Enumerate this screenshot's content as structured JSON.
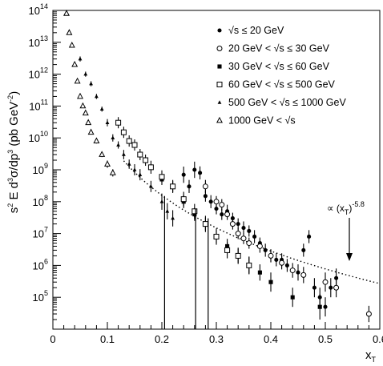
{
  "chart_data": {
    "type": "scatter",
    "title": "",
    "xlabel": "x",
    "xlabel_sub": "T",
    "ylabel_parts": [
      "s",
      "2",
      " E d",
      "3",
      "σ/dp",
      "3",
      " (pb GeV",
      "-2",
      ")"
    ],
    "xlim": [
      0,
      0.6
    ],
    "ylim": [
      10000,
      100000000000000
    ],
    "yscale": "log",
    "grid": false,
    "legend_position": "top-right",
    "x_ticks": [
      "0",
      "0.1",
      "0.2",
      "0.3",
      "0.4",
      "0.5",
      "0.6"
    ],
    "y_ticks": [
      {
        "base": "10",
        "exp": "5"
      },
      {
        "base": "10",
        "exp": "6"
      },
      {
        "base": "10",
        "exp": "7"
      },
      {
        "base": "10",
        "exp": "8"
      },
      {
        "base": "10",
        "exp": "9"
      },
      {
        "base": "10",
        "exp": "10"
      },
      {
        "base": "10",
        "exp": "11"
      },
      {
        "base": "10",
        "exp": "12"
      },
      {
        "base": "10",
        "exp": "13"
      },
      {
        "base": "10",
        "exp": "14"
      }
    ],
    "fit": {
      "label_main": "∝ (x",
      "label_sub": "T",
      "label_close": ")",
      "label_exp": "-5.8",
      "exponent": -5.8,
      "x_range": [
        0.13,
        0.6
      ],
      "ref_x": 0.3,
      "ref_y": 15000000
    },
    "series": [
      {
        "name": "√s ≤ 20 GeV",
        "marker": "filled-circle",
        "points": [
          [
            0.24,
            700000000,
            1.8
          ],
          [
            0.25,
            300000000,
            1.6
          ],
          [
            0.26,
            1000000000,
            1.8
          ],
          [
            0.27,
            800000000,
            1.6
          ],
          [
            0.28,
            150000000,
            1.5
          ],
          [
            0.29,
            100000000,
            1.6
          ],
          [
            0.3,
            60000000,
            1.5
          ],
          [
            0.31,
            40000000,
            1.5
          ],
          [
            0.32,
            50000000,
            1.6
          ],
          [
            0.33,
            30000000,
            1.5
          ],
          [
            0.34,
            20000000,
            1.5
          ],
          [
            0.35,
            15000000,
            1.6
          ],
          [
            0.36,
            12000000,
            1.5
          ],
          [
            0.37,
            8000000,
            1.6
          ],
          [
            0.38,
            5000000,
            1.5
          ],
          [
            0.39,
            3000000,
            1.6
          ],
          [
            0.4,
            2000000,
            1.6
          ],
          [
            0.41,
            1500000,
            1.6
          ],
          [
            0.42,
            1500000,
            1.6
          ],
          [
            0.43,
            1000000,
            1.6
          ],
          [
            0.45,
            600000,
            1.8
          ],
          [
            0.46,
            3000000,
            1.6
          ],
          [
            0.47,
            8000000,
            1.6
          ],
          [
            0.48,
            200000,
            2
          ],
          [
            0.49,
            100000,
            2
          ],
          [
            0.5,
            50000,
            2
          ],
          [
            0.51,
            200000,
            2
          ],
          [
            0.52,
            400000,
            2
          ]
        ]
      },
      {
        "name": "20 GeV < √s ≤ 30 GeV",
        "marker": "open-circle",
        "points": [
          [
            0.28,
            300000000,
            1.6
          ],
          [
            0.3,
            100000000,
            1.5
          ],
          [
            0.31,
            80000000,
            1.5
          ],
          [
            0.32,
            40000000,
            1.5
          ],
          [
            0.33,
            20000000,
            1.5
          ],
          [
            0.34,
            10000000,
            1.5
          ],
          [
            0.35,
            7000000,
            1.5
          ],
          [
            0.36,
            5000000,
            1.5
          ],
          [
            0.38,
            4000000,
            1.6
          ],
          [
            0.4,
            2000000,
            1.6
          ],
          [
            0.42,
            1200000,
            1.6
          ],
          [
            0.44,
            700000,
            1.7
          ],
          [
            0.46,
            500000,
            1.8
          ],
          [
            0.5,
            300000,
            2
          ],
          [
            0.52,
            200000,
            2
          ],
          [
            0.58,
            30000,
            1.8
          ]
        ]
      },
      {
        "name": "30 GeV < √s ≤ 60 GeV",
        "marker": "filled-square",
        "points": [
          [
            0.2,
            500000000,
            1.5
          ],
          [
            0.22,
            300000000,
            1.5
          ],
          [
            0.24,
            100000000,
            1.6
          ],
          [
            0.26,
            40000000,
            1.6
          ],
          [
            0.28,
            20000000,
            1.6
          ],
          [
            0.3,
            8000000,
            1.6
          ],
          [
            0.32,
            4000000,
            1.7
          ],
          [
            0.34,
            2000000,
            1.7
          ],
          [
            0.36,
            1000000,
            1.8
          ],
          [
            0.38,
            600000,
            1.8
          ],
          [
            0.4,
            300000,
            2
          ],
          [
            0.44,
            100000,
            2
          ],
          [
            0.49,
            50000,
            2.5
          ]
        ]
      },
      {
        "name": "60 GeV < √s ≤ 500 GeV",
        "marker": "open-square",
        "points": [
          [
            0.12,
            30000000000,
            1.5
          ],
          [
            0.13,
            15000000000,
            1.5
          ],
          [
            0.14,
            8000000000,
            1.5
          ],
          [
            0.15,
            6000000000,
            1.5
          ],
          [
            0.16,
            3000000000,
            1.5
          ],
          [
            0.17,
            2000000000,
            1.5
          ],
          [
            0.18,
            1200000000,
            1.6
          ],
          [
            0.2,
            600000000,
            1.6
          ],
          [
            0.22,
            300000000,
            1.6
          ],
          [
            0.24,
            120000000,
            1.7
          ],
          [
            0.26,
            50000000,
            1.7
          ],
          [
            0.28,
            20000000,
            1.8
          ],
          [
            0.3,
            8000000,
            1.8
          ],
          [
            0.32,
            3000000,
            1.8
          ],
          [
            0.34,
            2000000,
            1.8
          ],
          [
            0.36,
            1000000,
            1.9
          ]
        ]
      },
      {
        "name": "500 GeV < √s ≤ 1000 GeV",
        "marker": "small-triangle",
        "points": [
          [
            0.05,
            3000000000000,
            1.2
          ],
          [
            0.06,
            1000000000000,
            1.2
          ],
          [
            0.07,
            500000000000,
            1.2
          ],
          [
            0.08,
            200000000000,
            1.2
          ],
          [
            0.09,
            80000000000,
            1.2
          ],
          [
            0.1,
            30000000000,
            1.3
          ],
          [
            0.11,
            10000000000,
            1.3
          ],
          [
            0.12,
            6000000000,
            1.3
          ],
          [
            0.13,
            3000000000,
            1.4
          ],
          [
            0.14,
            1500000000,
            1.4
          ],
          [
            0.15,
            1000000000,
            1.5
          ],
          [
            0.16,
            700000000,
            1.5
          ],
          [
            0.18,
            300000000,
            1.5
          ],
          [
            0.2,
            100000000,
            1.8
          ],
          [
            0.21,
            50000000,
            1.8
          ],
          [
            0.22,
            30000000,
            1.8
          ]
        ]
      },
      {
        "name": "1000 GeV < √s",
        "marker": "open-triangle",
        "points": [
          [
            0.025,
            80000000000000,
            1.1
          ],
          [
            0.03,
            20000000000000,
            1.1
          ],
          [
            0.035,
            8000000000000,
            1.1
          ],
          [
            0.04,
            2000000000000,
            1.1
          ],
          [
            0.045,
            600000000000,
            1.1
          ],
          [
            0.05,
            200000000000,
            1.1
          ],
          [
            0.055,
            100000000000,
            1.1
          ],
          [
            0.06,
            60000000000,
            1.1
          ],
          [
            0.065,
            30000000000,
            1.1
          ],
          [
            0.07,
            15000000000,
            1.1
          ],
          [
            0.08,
            8000000000,
            1.2
          ],
          [
            0.09,
            3000000000,
            1.2
          ],
          [
            0.1,
            1500000000,
            1.3
          ],
          [
            0.11,
            800000000,
            1.3
          ]
        ]
      }
    ]
  }
}
